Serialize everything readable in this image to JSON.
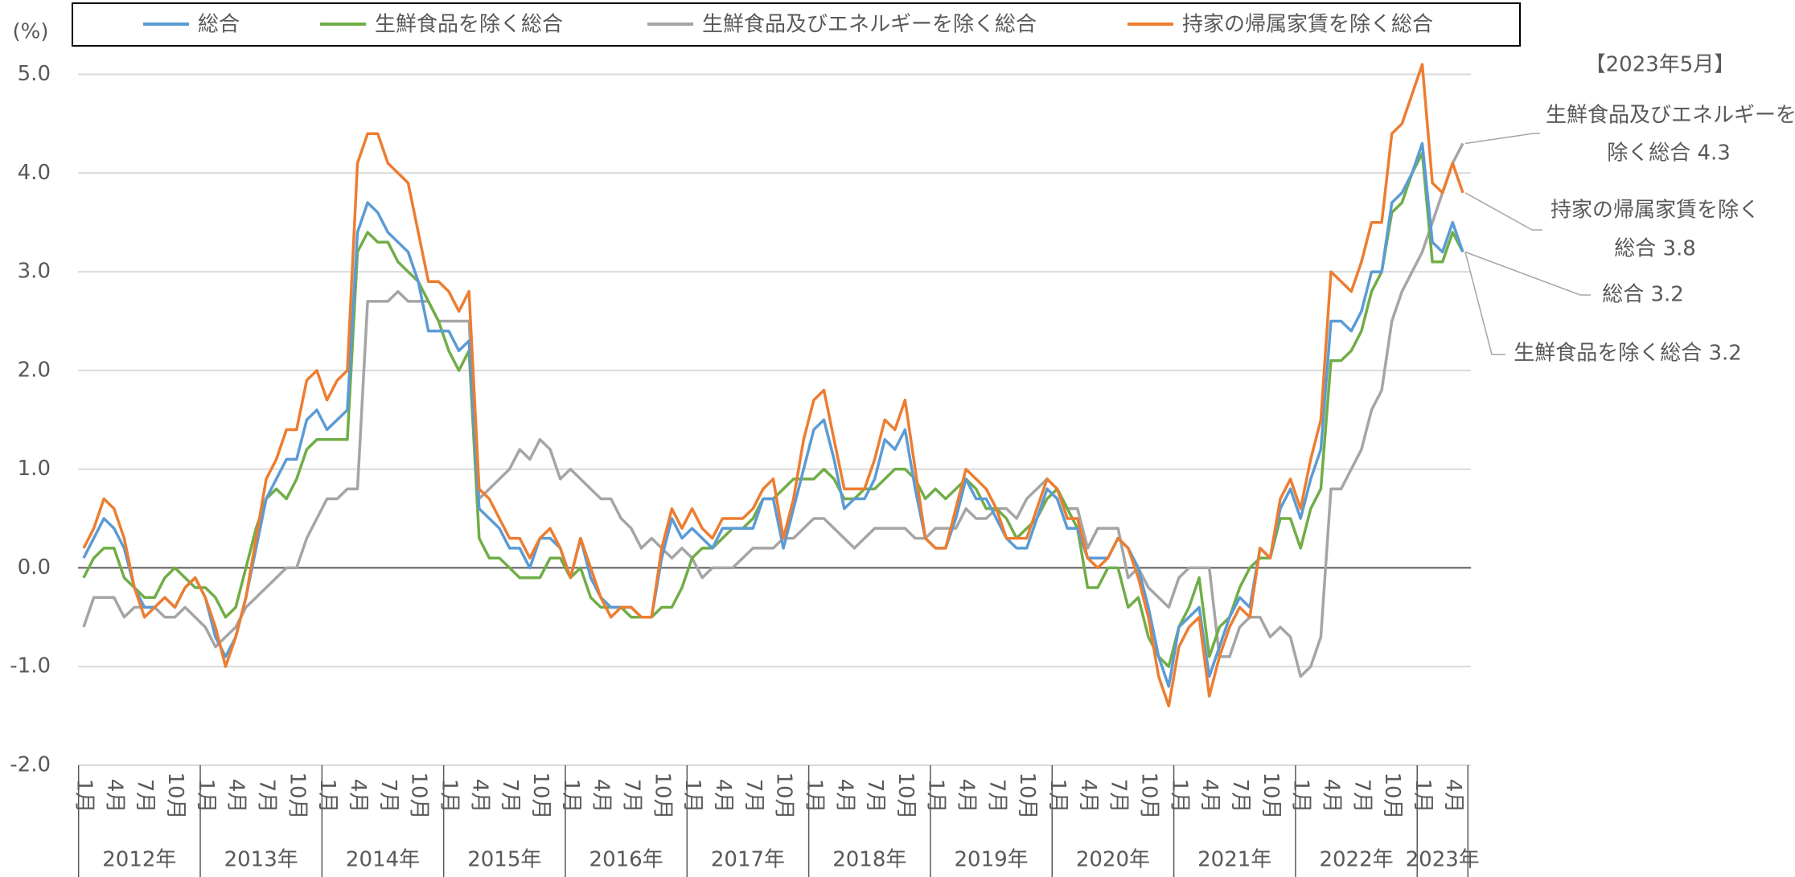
{
  "chart_data": {
    "type": "line",
    "y_label": "(%)",
    "categories": [
      "1月",
      null,
      null,
      "4月",
      null,
      null,
      "7月",
      null,
      null,
      "10月",
      null,
      null,
      "1月",
      null,
      null,
      "4月",
      null,
      null,
      "7月",
      null,
      null,
      "10月",
      null,
      null,
      "1月",
      null,
      null,
      "4月",
      null,
      null,
      "7月",
      null,
      null,
      "10月",
      null,
      null,
      "1月",
      null,
      null,
      "4月",
      null,
      null,
      "7月",
      null,
      null,
      "10月",
      null,
      null,
      "1月",
      null,
      null,
      "4月",
      null,
      null,
      "7月",
      null,
      null,
      "10月",
      null,
      null,
      "1月",
      null,
      null,
      "4月",
      null,
      null,
      "7月",
      null,
      null,
      "10月",
      null,
      null,
      "1月",
      null,
      null,
      "4月",
      null,
      null,
      "7月",
      null,
      null,
      "10月",
      null,
      null,
      "1月",
      null,
      null,
      "4月",
      null,
      null,
      "7月",
      null,
      null,
      "10月",
      null,
      null,
      "1月",
      null,
      null,
      "4月",
      null,
      null,
      "7月",
      null,
      null,
      "10月",
      null,
      null,
      "1月",
      null,
      null,
      "4月",
      null,
      null,
      "7月",
      null,
      null,
      "10月",
      null,
      null,
      "1月",
      null,
      null,
      "4月",
      null,
      null,
      "7月",
      null,
      null,
      "10月",
      null,
      null,
      "1月",
      null,
      null,
      "4月",
      null
    ],
    "years": [
      "2012年",
      "2013年",
      "2014年",
      "2015年",
      "2016年",
      "2017年",
      "2018年",
      "2019年",
      "2020年",
      "2021年",
      "2022年",
      "2023年"
    ],
    "series": [
      {
        "name": "総合",
        "color": "#5b9bd5",
        "values": [
          0.1,
          0.3,
          0.5,
          0.4,
          0.2,
          -0.2,
          -0.4,
          -0.4,
          -0.3,
          -0.4,
          -0.2,
          -0.1,
          -0.3,
          -0.7,
          -0.9,
          -0.7,
          -0.3,
          0.2,
          0.7,
          0.9,
          1.1,
          1.1,
          1.5,
          1.6,
          1.4,
          1.5,
          1.6,
          3.4,
          3.7,
          3.6,
          3.4,
          3.3,
          3.2,
          2.9,
          2.4,
          2.4,
          2.4,
          2.2,
          2.3,
          0.6,
          0.5,
          0.4,
          0.2,
          0.2,
          0.0,
          0.3,
          0.3,
          0.2,
          -0.1,
          0.3,
          -0.1,
          -0.3,
          -0.4,
          -0.4,
          -0.4,
          -0.5,
          -0.5,
          0.1,
          0.5,
          0.3,
          0.4,
          0.3,
          0.2,
          0.4,
          0.4,
          0.4,
          0.4,
          0.7,
          0.7,
          0.2,
          0.6,
          1.0,
          1.4,
          1.5,
          1.1,
          0.6,
          0.7,
          0.7,
          0.9,
          1.3,
          1.2,
          1.4,
          0.8,
          0.3,
          0.2,
          0.2,
          0.5,
          0.9,
          0.7,
          0.7,
          0.5,
          0.3,
          0.2,
          0.2,
          0.5,
          0.8,
          0.7,
          0.4,
          0.4,
          0.1,
          0.1,
          0.1,
          0.3,
          0.2,
          0.0,
          -0.4,
          -0.9,
          -1.2,
          -0.6,
          -0.5,
          -0.4,
          -1.1,
          -0.8,
          -0.5,
          -0.3,
          -0.4,
          0.2,
          0.1,
          0.6,
          0.8,
          0.5,
          0.9,
          1.2,
          2.5,
          2.5,
          2.4,
          2.6,
          3.0,
          3.0,
          3.7,
          3.8,
          4.0,
          4.3,
          3.3,
          3.2,
          3.5,
          3.2
        ]
      },
      {
        "name": "生鮮食品を除く総合",
        "color": "#70ad47",
        "values": [
          -0.1,
          0.1,
          0.2,
          0.2,
          -0.1,
          -0.2,
          -0.3,
          -0.3,
          -0.1,
          0.0,
          -0.1,
          -0.2,
          -0.2,
          -0.3,
          -0.5,
          -0.4,
          0.0,
          0.4,
          0.7,
          0.8,
          0.7,
          0.9,
          1.2,
          1.3,
          1.3,
          1.3,
          1.3,
          3.2,
          3.4,
          3.3,
          3.3,
          3.1,
          3.0,
          2.9,
          2.7,
          2.5,
          2.2,
          2.0,
          2.2,
          0.3,
          0.1,
          0.1,
          0.0,
          -0.1,
          -0.1,
          -0.1,
          0.1,
          0.1,
          -0.1,
          0.0,
          -0.3,
          -0.4,
          -0.4,
          -0.4,
          -0.5,
          -0.5,
          -0.5,
          -0.4,
          -0.4,
          -0.2,
          0.1,
          0.2,
          0.2,
          0.3,
          0.4,
          0.4,
          0.5,
          0.7,
          0.7,
          0.8,
          0.9,
          0.9,
          0.9,
          1.0,
          0.9,
          0.7,
          0.7,
          0.8,
          0.8,
          0.9,
          1.0,
          1.0,
          0.9,
          0.7,
          0.8,
          0.7,
          0.8,
          0.9,
          0.8,
          0.6,
          0.6,
          0.5,
          0.3,
          0.4,
          0.5,
          0.7,
          0.8,
          0.6,
          0.4,
          -0.2,
          -0.2,
          0.0,
          0.0,
          -0.4,
          -0.3,
          -0.7,
          -0.9,
          -1.0,
          -0.6,
          -0.4,
          -0.1,
          -0.9,
          -0.6,
          -0.5,
          -0.2,
          0.0,
          0.1,
          0.1,
          0.5,
          0.5,
          0.2,
          0.6,
          0.8,
          2.1,
          2.1,
          2.2,
          2.4,
          2.8,
          3.0,
          3.6,
          3.7,
          4.0,
          4.2,
          3.1,
          3.1,
          3.4,
          3.2
        ]
      },
      {
        "name": "生鮮食品及びエネルギーを除く総合",
        "color": "#a5a5a5",
        "values": [
          -0.6,
          -0.3,
          -0.3,
          -0.3,
          -0.5,
          -0.4,
          -0.4,
          -0.4,
          -0.5,
          -0.5,
          -0.4,
          -0.5,
          -0.6,
          -0.8,
          -0.7,
          -0.6,
          -0.4,
          -0.3,
          -0.2,
          -0.1,
          0.0,
          0.0,
          0.3,
          0.5,
          0.7,
          0.7,
          0.8,
          0.8,
          2.7,
          2.7,
          2.7,
          2.8,
          2.7,
          2.7,
          2.7,
          2.5,
          2.5,
          2.5,
          2.5,
          0.7,
          0.8,
          0.9,
          1.0,
          1.2,
          1.1,
          1.3,
          1.2,
          0.9,
          1.0,
          0.9,
          0.8,
          0.7,
          0.7,
          0.5,
          0.4,
          0.2,
          0.3,
          0.2,
          0.1,
          0.2,
          0.1,
          -0.1,
          0.0,
          0.0,
          0.0,
          0.1,
          0.2,
          0.2,
          0.2,
          0.3,
          0.3,
          0.4,
          0.5,
          0.5,
          0.4,
          0.3,
          0.2,
          0.3,
          0.4,
          0.4,
          0.4,
          0.4,
          0.3,
          0.3,
          0.4,
          0.4,
          0.4,
          0.6,
          0.5,
          0.5,
          0.6,
          0.6,
          0.5,
          0.7,
          0.8,
          0.9,
          0.8,
          0.6,
          0.6,
          0.2,
          0.4,
          0.4,
          0.4,
          -0.1,
          0.0,
          -0.2,
          -0.3,
          -0.4,
          -0.1,
          0.0,
          0.0,
          0.0,
          -0.9,
          -0.9,
          -0.6,
          -0.5,
          -0.5,
          -0.7,
          -0.6,
          -0.7,
          -1.1,
          -1.0,
          -0.7,
          0.8,
          0.8,
          1.0,
          1.2,
          1.6,
          1.8,
          2.5,
          2.8,
          3.0,
          3.2,
          3.5,
          3.8,
          4.1,
          4.3
        ]
      },
      {
        "name": "持家の帰属家賃を除く総合",
        "color": "#ed7d31",
        "values": [
          0.2,
          0.4,
          0.7,
          0.6,
          0.3,
          -0.2,
          -0.5,
          -0.4,
          -0.3,
          -0.4,
          -0.2,
          -0.1,
          -0.3,
          -0.6,
          -1.0,
          -0.7,
          -0.3,
          0.3,
          0.9,
          1.1,
          1.4,
          1.4,
          1.9,
          2.0,
          1.7,
          1.9,
          2.0,
          4.1,
          4.4,
          4.4,
          4.1,
          4.0,
          3.9,
          3.4,
          2.9,
          2.9,
          2.8,
          2.6,
          2.8,
          0.8,
          0.7,
          0.5,
          0.3,
          0.3,
          0.1,
          0.3,
          0.4,
          0.2,
          -0.1,
          0.3,
          0.0,
          -0.3,
          -0.5,
          -0.4,
          -0.4,
          -0.5,
          -0.5,
          0.2,
          0.6,
          0.4,
          0.6,
          0.4,
          0.3,
          0.5,
          0.5,
          0.5,
          0.6,
          0.8,
          0.9,
          0.3,
          0.7,
          1.3,
          1.7,
          1.8,
          1.3,
          0.8,
          0.8,
          0.8,
          1.1,
          1.5,
          1.4,
          1.7,
          1.0,
          0.3,
          0.2,
          0.2,
          0.6,
          1.0,
          0.9,
          0.8,
          0.6,
          0.3,
          0.3,
          0.3,
          0.6,
          0.9,
          0.8,
          0.5,
          0.5,
          0.1,
          0.0,
          0.1,
          0.3,
          0.2,
          -0.1,
          -0.5,
          -1.1,
          -1.4,
          -0.8,
          -0.6,
          -0.5,
          -1.3,
          -0.9,
          -0.6,
          -0.4,
          -0.5,
          0.2,
          0.1,
          0.7,
          0.9,
          0.6,
          1.1,
          1.5,
          3.0,
          2.9,
          2.8,
          3.1,
          3.5,
          3.5,
          4.4,
          4.5,
          4.8,
          5.1,
          3.9,
          3.8,
          4.1,
          3.8
        ]
      }
    ],
    "ylim": [
      -2,
      5
    ],
    "yticks": [
      {
        "value": -2,
        "label": "-2.0"
      },
      {
        "value": -1,
        "label": "-1.0"
      },
      {
        "value": 0,
        "label": "0.0"
      },
      {
        "value": 1,
        "label": "1.0"
      },
      {
        "value": 2,
        "label": "2.0"
      },
      {
        "value": 3,
        "label": "3.0"
      },
      {
        "value": 4,
        "label": "4.0"
      },
      {
        "value": 5,
        "label": "5.0"
      }
    ],
    "grid": true,
    "annotations": [
      "【2023年5月】",
      "生鮮食品及びエネルギーを",
      "除く総合 4.3",
      "持家の帰属家賃を除く",
      "総合 3.8",
      "総合 3.2",
      "生鮮食品を除く総合 3.2"
    ]
  }
}
